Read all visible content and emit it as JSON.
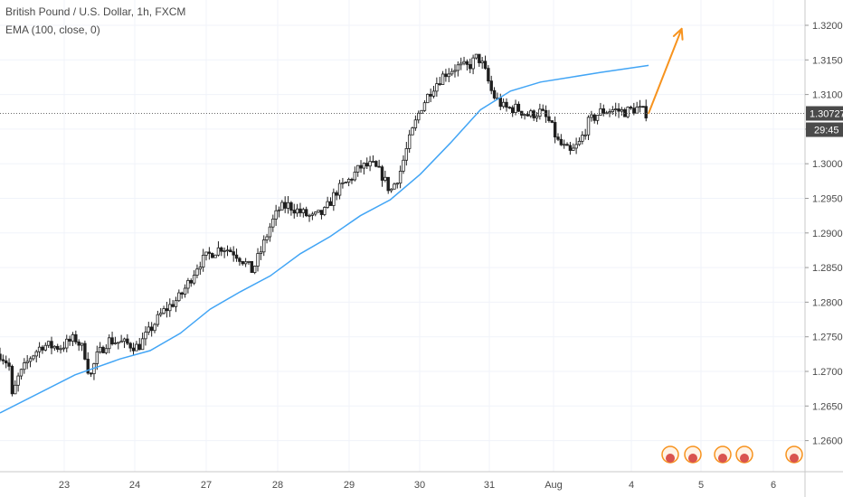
{
  "header": {
    "symbol": "British Pound / U.S. Dollar, 1h, FXCM",
    "indicator": "EMA (100, close, 0)"
  },
  "colors": {
    "background": "#ffffff",
    "candle": "#1f1f1f",
    "ema": "#42a5f5",
    "arrow": "#f7931e",
    "grid": "#f0f3fa",
    "axis_text": "#4a4a4a",
    "price_label_bg": "#4a4a4a",
    "price_label_text": "#ffffff"
  },
  "price_axis": {
    "ticks": [
      "1.32000",
      "1.31500",
      "1.31000",
      "1.30500",
      "1.30000",
      "1.29500",
      "1.29000",
      "1.28500",
      "1.28000",
      "1.27500",
      "1.27000",
      "1.26500",
      "1.26000"
    ],
    "current_price": "1.30727",
    "countdown": "29:45"
  },
  "time_axis": {
    "ticks": [
      "23",
      "24",
      "27",
      "28",
      "29",
      "30",
      "31",
      "Aug",
      "4",
      "5",
      "6"
    ]
  },
  "chart_data": {
    "type": "candlestick",
    "title": "British Pound / U.S. Dollar, 1h, FXCM",
    "instrument": "GBP/USD",
    "ylim": [
      1.2575,
      1.3225
    ],
    "grid": true,
    "x_ticks": [
      "23",
      "24",
      "27",
      "28",
      "29",
      "30",
      "31",
      "Aug",
      "4",
      "5",
      "6"
    ],
    "price_path": [
      [
        0,
        1.2725
      ],
      [
        0.3,
        1.271
      ],
      [
        0.35,
        1.2655
      ],
      [
        0.6,
        1.269
      ],
      [
        1.0,
        1.272
      ],
      [
        1.4,
        1.2738
      ],
      [
        2.0,
        1.2735
      ],
      [
        2.5,
        1.2748
      ],
      [
        2.8,
        1.273
      ],
      [
        3.0,
        1.269
      ],
      [
        3.2,
        1.272
      ],
      [
        3.6,
        1.2745
      ],
      [
        4.2,
        1.274
      ],
      [
        4.6,
        1.2735
      ],
      [
        5.0,
        1.276
      ],
      [
        5.4,
        1.2785
      ],
      [
        5.8,
        1.28
      ],
      [
        6.0,
        1.2808
      ],
      [
        6.3,
        1.283
      ],
      [
        6.6,
        1.2855
      ],
      [
        7.0,
        1.287
      ],
      [
        7.4,
        1.288
      ],
      [
        7.8,
        1.2872
      ],
      [
        8.1,
        1.286
      ],
      [
        8.4,
        1.2845
      ],
      [
        8.7,
        1.2875
      ],
      [
        9.0,
        1.291
      ],
      [
        9.3,
        1.2935
      ],
      [
        9.6,
        1.294
      ],
      [
        10.0,
        1.293
      ],
      [
        10.4,
        1.2922
      ],
      [
        10.8,
        1.293
      ],
      [
        11.2,
        1.296
      ],
      [
        11.6,
        1.2975
      ],
      [
        12.0,
        1.2995
      ],
      [
        12.4,
        1.2998
      ],
      [
        12.7,
        1.2985
      ],
      [
        13.0,
        1.296
      ],
      [
        13.3,
        1.2985
      ],
      [
        13.6,
        1.303
      ],
      [
        14.0,
        1.308
      ],
      [
        14.4,
        1.311
      ],
      [
        14.8,
        1.313
      ],
      [
        15.2,
        1.314
      ],
      [
        15.6,
        1.314
      ],
      [
        15.9,
        1.3155
      ],
      [
        16.1,
        1.314
      ],
      [
        16.4,
        1.31
      ],
      [
        16.8,
        1.308
      ],
      [
        17.2,
        1.308
      ],
      [
        17.6,
        1.307
      ],
      [
        18.0,
        1.3075
      ],
      [
        18.3,
        1.306
      ],
      [
        18.6,
        1.303
      ],
      [
        19.0,
        1.3015
      ],
      [
        19.3,
        1.303
      ],
      [
        19.6,
        1.306
      ],
      [
        20.0,
        1.3075
      ],
      [
        20.4,
        1.3078
      ],
      [
        20.8,
        1.3075
      ],
      [
        21.2,
        1.308
      ],
      [
        21.55,
        1.30727
      ]
    ],
    "series": [
      {
        "name": "EMA (100, close, 0)",
        "type": "line",
        "points": [
          [
            0,
            1.264
          ],
          [
            2.5,
            1.2695
          ],
          [
            4.0,
            1.2718
          ],
          [
            5.0,
            1.273
          ],
          [
            6.0,
            1.2755
          ],
          [
            7.0,
            1.279
          ],
          [
            8.0,
            1.2815
          ],
          [
            9.0,
            1.2838
          ],
          [
            10.0,
            1.287
          ],
          [
            11.0,
            1.2895
          ],
          [
            12.0,
            1.2925
          ],
          [
            13.0,
            1.2948
          ],
          [
            14.0,
            1.2985
          ],
          [
            15.0,
            1.303
          ],
          [
            16.0,
            1.3078
          ],
          [
            17.0,
            1.3105
          ],
          [
            18.0,
            1.3118
          ],
          [
            19.0,
            1.3125
          ],
          [
            20.0,
            1.3132
          ],
          [
            21.6,
            1.3142
          ]
        ]
      }
    ],
    "annotation": {
      "type": "arrow",
      "from": [
        21.6,
        1.3073
      ],
      "to": [
        22.7,
        1.3195
      ]
    }
  }
}
